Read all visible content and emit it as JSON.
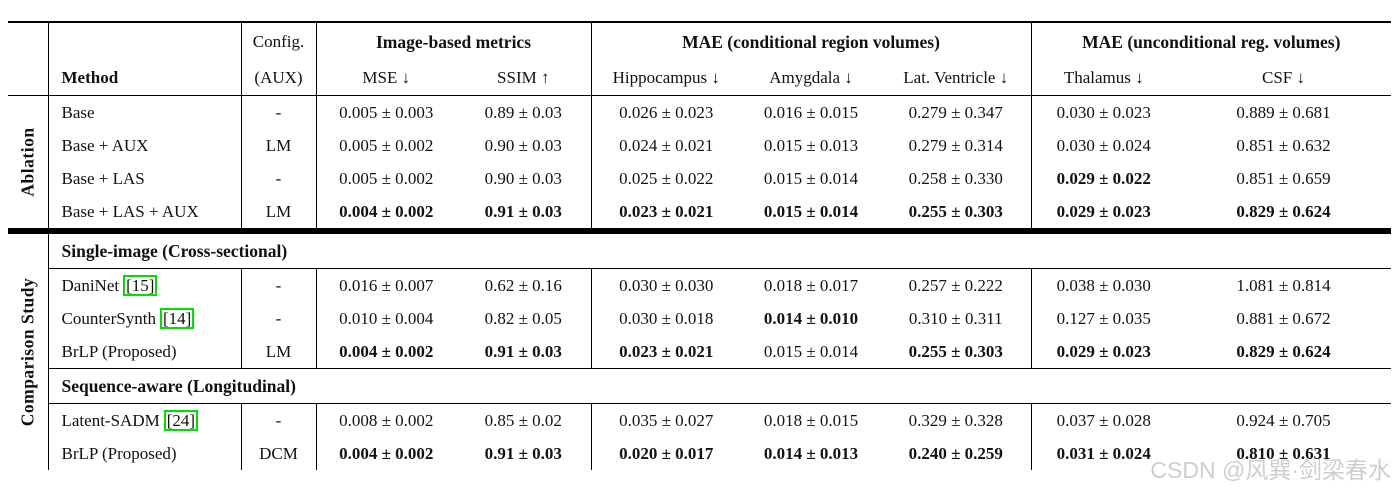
{
  "watermark": "CSDN @风巽·剑梁春水",
  "colors": {
    "citation_green": "#00e000",
    "rule_black": "#000000",
    "watermark_gray": "#c9c9c9"
  },
  "header": {
    "method": "Method",
    "config_top": "Config.",
    "config_bottom": "(AUX)",
    "groups": [
      "Image-based metrics",
      "MAE (conditional region volumes)",
      "MAE (unconditional reg. volumes)"
    ],
    "subcols": [
      "MSE ↓",
      "SSIM ↑",
      "Hippocampus ↓",
      "Amygdala ↓",
      "Lat. Ventricle ↓",
      "Thalamus ↓",
      "CSF ↓"
    ]
  },
  "sections": [
    {
      "side_label": "Ablation",
      "groups": [
        {
          "header": null,
          "rows": [
            {
              "method": "Base",
              "citation": null,
              "config": "-",
              "values": [
                "0.005 ± 0.003",
                "0.89 ± 0.03",
                "0.026 ± 0.023",
                "0.016 ± 0.015",
                "0.279 ± 0.347",
                "0.030 ± 0.023",
                "0.889 ± 0.681"
              ],
              "bold": [
                false,
                false,
                false,
                false,
                false,
                false,
                false
              ]
            },
            {
              "method": "Base + AUX",
              "citation": null,
              "config": "LM",
              "values": [
                "0.005 ± 0.002",
                "0.90 ± 0.03",
                "0.024 ± 0.021",
                "0.015 ± 0.013",
                "0.279 ± 0.314",
                "0.030 ± 0.024",
                "0.851 ± 0.632"
              ],
              "bold": [
                false,
                false,
                false,
                false,
                false,
                false,
                false
              ]
            },
            {
              "method": "Base + LAS",
              "citation": null,
              "config": "-",
              "values": [
                "0.005 ± 0.002",
                "0.90 ± 0.03",
                "0.025 ± 0.022",
                "0.015 ± 0.014",
                "0.258 ± 0.330",
                "0.029 ± 0.022",
                "0.851 ± 0.659"
              ],
              "bold": [
                false,
                false,
                false,
                false,
                false,
                true,
                false
              ]
            },
            {
              "method": "Base + LAS + AUX",
              "citation": null,
              "config": "LM",
              "values": [
                "0.004 ± 0.002",
                "0.91 ± 0.03",
                "0.023 ± 0.021",
                "0.015 ± 0.014",
                "0.255 ± 0.303",
                "0.029 ± 0.023",
                "0.829 ± 0.624"
              ],
              "bold": [
                true,
                true,
                true,
                true,
                true,
                true,
                true
              ]
            }
          ]
        }
      ]
    },
    {
      "side_label": "Comparison Study",
      "groups": [
        {
          "header": "Single-image (Cross-sectional)",
          "rows": [
            {
              "method": "DaniNet",
              "citation": "[15]",
              "config": "-",
              "values": [
                "0.016 ± 0.007",
                "0.62 ± 0.16",
                "0.030 ± 0.030",
                "0.018 ± 0.017",
                "0.257 ± 0.222",
                "0.038 ± 0.030",
                "1.081 ± 0.814"
              ],
              "bold": [
                false,
                false,
                false,
                false,
                false,
                false,
                false
              ]
            },
            {
              "method": "CounterSynth",
              "citation": "[14]",
              "config": "-",
              "values": [
                "0.010 ± 0.004",
                "0.82 ± 0.05",
                "0.030 ± 0.018",
                "0.014 ± 0.010",
                "0.310 ± 0.311",
                "0.127 ± 0.035",
                "0.881 ± 0.672"
              ],
              "bold": [
                false,
                false,
                false,
                true,
                false,
                false,
                false
              ]
            },
            {
              "method": "BrLP (Proposed)",
              "citation": null,
              "config": "LM",
              "values": [
                "0.004 ± 0.002",
                "0.91 ± 0.03",
                "0.023 ± 0.021",
                "0.015 ± 0.014",
                "0.255 ± 0.303",
                "0.029 ± 0.023",
                "0.829 ± 0.624"
              ],
              "bold": [
                true,
                true,
                true,
                false,
                true,
                true,
                true
              ]
            }
          ]
        },
        {
          "header": "Sequence-aware (Longitudinal)",
          "rows": [
            {
              "method": "Latent-SADM",
              "citation": "[24]",
              "config": "-",
              "values": [
                "0.008 ± 0.002",
                "0.85 ± 0.02",
                "0.035 ± 0.027",
                "0.018 ± 0.015",
                "0.329 ± 0.328",
                "0.037 ± 0.028",
                "0.924 ± 0.705"
              ],
              "bold": [
                false,
                false,
                false,
                false,
                false,
                false,
                false
              ]
            },
            {
              "method": "BrLP (Proposed)",
              "citation": null,
              "config": "DCM",
              "values": [
                "0.004 ± 0.002",
                "0.91 ± 0.03",
                "0.020 ± 0.017",
                "0.014 ± 0.013",
                "0.240 ± 0.259",
                "0.031 ± 0.024",
                "0.810 ± 0.631"
              ],
              "bold": [
                true,
                true,
                true,
                true,
                true,
                true,
                true
              ]
            }
          ]
        }
      ]
    }
  ]
}
